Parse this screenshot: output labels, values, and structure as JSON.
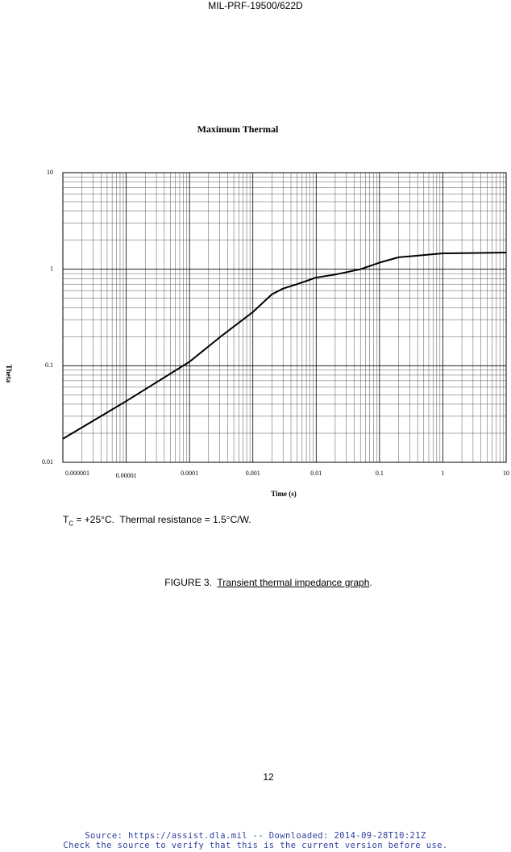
{
  "header": {
    "doc_id": "MIL-PRF-19500/622D"
  },
  "chart_data": {
    "type": "line",
    "title": "Maximum Thermal",
    "xlabel": "Time (s)",
    "ylabel": "Theta",
    "x": [
      1e-06,
      1e-05,
      0.0001,
      0.0003,
      0.001,
      0.002,
      0.003,
      0.005,
      0.01,
      0.02,
      0.05,
      0.1,
      0.2,
      0.5,
      1,
      3,
      10
    ],
    "values": [
      0.0175,
      0.043,
      0.11,
      0.197,
      0.36,
      0.55,
      0.63,
      0.7,
      0.82,
      0.88,
      1.0,
      1.17,
      1.33,
      1.4,
      1.46,
      1.47,
      1.49
    ],
    "color": "#000000",
    "xlim": [
      1e-06,
      10
    ],
    "ylim": [
      0.01,
      10
    ],
    "xscale": "log",
    "yscale": "log",
    "xticks": [
      {
        "value": 1e-06,
        "label": "0.000001"
      },
      {
        "value": 1e-05,
        "label": "0.00001"
      },
      0.0001,
      0.001,
      0.01,
      0.1,
      1,
      10
    ],
    "yticks": [
      0.01,
      0.1,
      1,
      10
    ],
    "grid": true,
    "minor_grid": true
  },
  "note": {
    "symbol": "T",
    "subscript": "C",
    "text": " = +25°C.  Thermal resistance = 1.5°C/W."
  },
  "caption": {
    "label": "FIGURE 3.  ",
    "title": "Transient thermal impedance graph",
    "end": "."
  },
  "page_number": "12",
  "footer": {
    "line1": "Source: https://assist.dla.mil -- Downloaded: 2014-09-28T10:21Z",
    "line2": "Check the source to verify that this is the current version before use."
  }
}
